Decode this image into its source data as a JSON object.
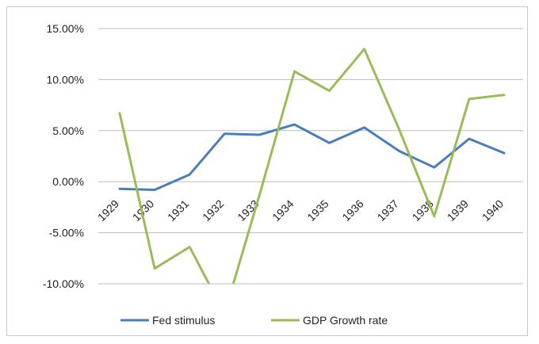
{
  "chart_data": {
    "type": "line",
    "categories": [
      "1929",
      "1930",
      "1931",
      "1932",
      "1933",
      "1934",
      "1935",
      "1936",
      "1937",
      "1938",
      "1939",
      "1940"
    ],
    "series": [
      {
        "name": "Fed stimulus",
        "color": "#4a7ebb",
        "values": [
          -0.7,
          -0.8,
          0.7,
          4.7,
          4.6,
          5.6,
          3.8,
          5.3,
          3.0,
          1.4,
          4.2,
          2.8
        ]
      },
      {
        "name": "GDP Growth rate",
        "color": "#9bbb59",
        "values": [
          6.7,
          -8.5,
          -6.4,
          -12.9,
          -1.3,
          10.8,
          8.9,
          13.0,
          5.1,
          -3.4,
          8.1,
          8.5
        ]
      }
    ],
    "y_ticks": [
      "15.00%",
      "10.00%",
      "5.00%",
      "0.00%",
      "-5.00%",
      "-10.00%"
    ],
    "ylim": [
      -10,
      15
    ],
    "grid": true,
    "legend": "bottom"
  }
}
